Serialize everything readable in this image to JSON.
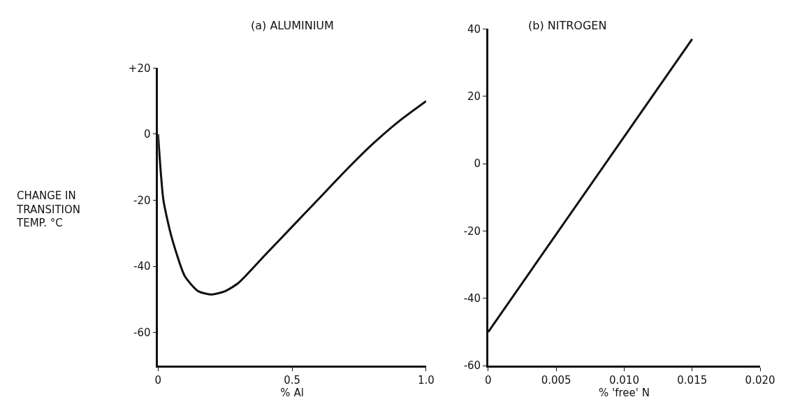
{
  "chart_data": [
    {
      "type": "line",
      "title": "(a) ALUMINIUM",
      "xlabel": "% Al",
      "ylabel": "CHANGE IN\nTRANSITION\nTEMP. °C",
      "x": [
        0,
        0.02,
        0.05,
        0.1,
        0.15,
        0.2,
        0.25,
        0.3,
        0.4,
        0.5,
        0.6,
        0.7,
        0.8,
        0.9,
        1.0
      ],
      "series": [
        {
          "color": "#111111",
          "values": [
            0,
            -20,
            -31,
            -43,
            -47.5,
            -48.5,
            -47.5,
            -45,
            -36.5,
            -28,
            -19.5,
            -11,
            -3,
            4,
            10
          ]
        }
      ],
      "xlim": [
        0,
        1.0
      ],
      "ylim": [
        -70,
        20
      ],
      "xticks": [
        0,
        0.5,
        {
          "value": 1.0,
          "label": "1.0"
        }
      ],
      "yticks": [
        -60,
        -40,
        -20,
        0,
        {
          "value": 20,
          "label": "+20"
        }
      ],
      "line_style": "solid"
    },
    {
      "type": "line",
      "title": "(b) NITROGEN",
      "xlabel": "% 'free' N",
      "x": [
        0,
        0.015
      ],
      "series": [
        {
          "color": "#111111",
          "values": [
            -50,
            37
          ]
        }
      ],
      "xlim": [
        0,
        0.02
      ],
      "ylim": [
        -60,
        40
      ],
      "xticks": [
        0,
        0.005,
        {
          "value": 0.01,
          "label": "0.010"
        },
        0.015,
        {
          "value": 0.02,
          "label": "0.020"
        }
      ],
      "yticks": [
        -60,
        -40,
        -20,
        0,
        20,
        40
      ],
      "line_style": "solid"
    }
  ]
}
